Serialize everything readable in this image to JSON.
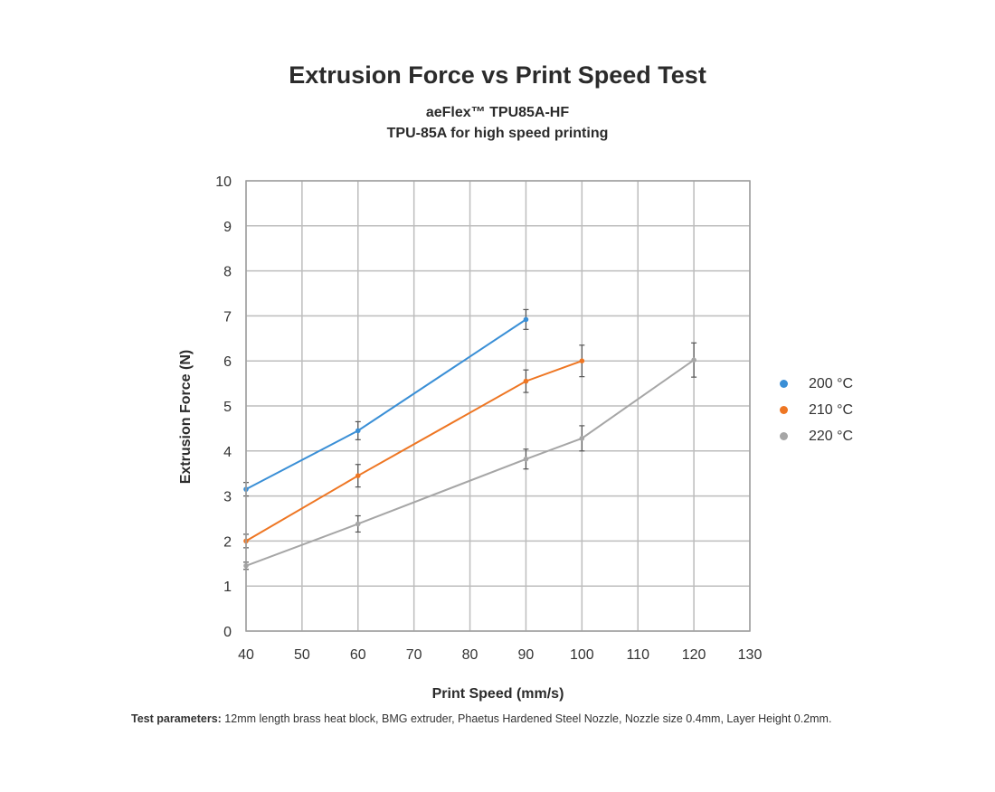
{
  "chart_data": {
    "type": "line",
    "title": "Extrusion Force vs Print Speed Test",
    "subtitle_lines": [
      "aeFlex™ TPU85A-HF",
      "TPU-85A for high speed printing"
    ],
    "xlabel": "Print Speed (mm/s)",
    "ylabel": "Extrusion Force (N)",
    "xlim": [
      40,
      130
    ],
    "ylim": [
      0,
      10
    ],
    "xticks": [
      "40",
      "50",
      "60",
      "70",
      "80",
      "90",
      "100",
      "110",
      "120",
      "130"
    ],
    "yticks": [
      "0",
      "1",
      "2",
      "3",
      "4",
      "5",
      "6",
      "7",
      "8",
      "9",
      "10"
    ],
    "grid": true,
    "legend_position": "right",
    "series": [
      {
        "name": "200 °C",
        "color": "#3a8fd6",
        "x": [
          40,
          60,
          90
        ],
        "y": [
          3.15,
          4.45,
          6.92
        ],
        "error": [
          0.15,
          0.2,
          0.22
        ]
      },
      {
        "name": "210 °C",
        "color": "#ee7623",
        "x": [
          40,
          60,
          90,
          100
        ],
        "y": [
          2.0,
          3.45,
          5.55,
          6.0
        ],
        "error": [
          0.15,
          0.25,
          0.25,
          0.35
        ]
      },
      {
        "name": "220 °C",
        "color": "#a6a6a6",
        "x": [
          40,
          60,
          90,
          100,
          120
        ],
        "y": [
          1.45,
          2.38,
          3.82,
          4.28,
          6.02
        ],
        "error": [
          0.08,
          0.18,
          0.22,
          0.28,
          0.38
        ]
      }
    ]
  },
  "footnote": {
    "label": "Test parameters:",
    "text": "12mm length brass heat block, BMG extruder, Phaetus Hardened Steel Nozzle, Nozzle size 0.4mm, Layer Height 0.2mm."
  }
}
